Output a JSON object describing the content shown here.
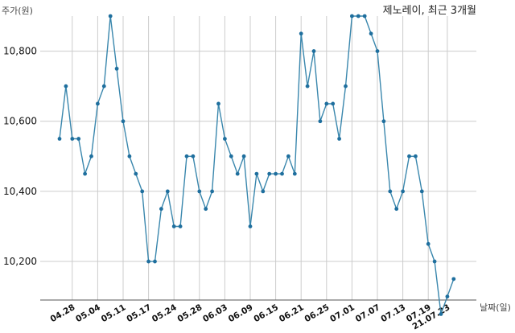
{
  "chart_data": {
    "type": "line",
    "title": "제노레이, 최근 3개월",
    "ylabel": "주가(원)",
    "xlabel": "날짜(일)",
    "ylim": [
      10090,
      10900
    ],
    "grid": true,
    "line_color": "#3a87ad",
    "yticks": [
      {
        "value": 10800,
        "label": "10,800"
      },
      {
        "value": 10600,
        "label": "10,600"
      },
      {
        "value": 10400,
        "label": "10,400"
      },
      {
        "value": 10200,
        "label": "10,200"
      }
    ],
    "xticks": [
      {
        "index": 2,
        "label": "04.28"
      },
      {
        "index": 6,
        "label": "05.04"
      },
      {
        "index": 10,
        "label": "05.11"
      },
      {
        "index": 14,
        "label": "05.17"
      },
      {
        "index": 18,
        "label": "05.24"
      },
      {
        "index": 22,
        "label": "05.28"
      },
      {
        "index": 26,
        "label": "06.03"
      },
      {
        "index": 30,
        "label": "06.09"
      },
      {
        "index": 34,
        "label": "06.15"
      },
      {
        "index": 38,
        "label": "06.21"
      },
      {
        "index": 42,
        "label": "06.25"
      },
      {
        "index": 46,
        "label": "07.01"
      },
      {
        "index": 50,
        "label": "07.07"
      },
      {
        "index": 54,
        "label": "07.13"
      },
      {
        "index": 58,
        "label": "07.19"
      },
      {
        "index": 61,
        "label": "21.07.23"
      }
    ],
    "values": [
      10550,
      10700,
      10550,
      10550,
      10450,
      10500,
      10650,
      10700,
      10900,
      10750,
      10600,
      10500,
      10450,
      10400,
      10200,
      10200,
      10350,
      10400,
      10300,
      10300,
      10500,
      10500,
      10400,
      10350,
      10400,
      10650,
      10550,
      10500,
      10450,
      10500,
      10300,
      10450,
      10400,
      10450,
      10450,
      10450,
      10500,
      10450,
      10850,
      10700,
      10800,
      10600,
      10650,
      10650,
      10550,
      10700,
      10900,
      10900,
      10900,
      10850,
      10800,
      10600,
      10400,
      10350,
      10400,
      10500,
      10500,
      10400,
      10250,
      10200,
      10050,
      10100,
      10150
    ]
  }
}
